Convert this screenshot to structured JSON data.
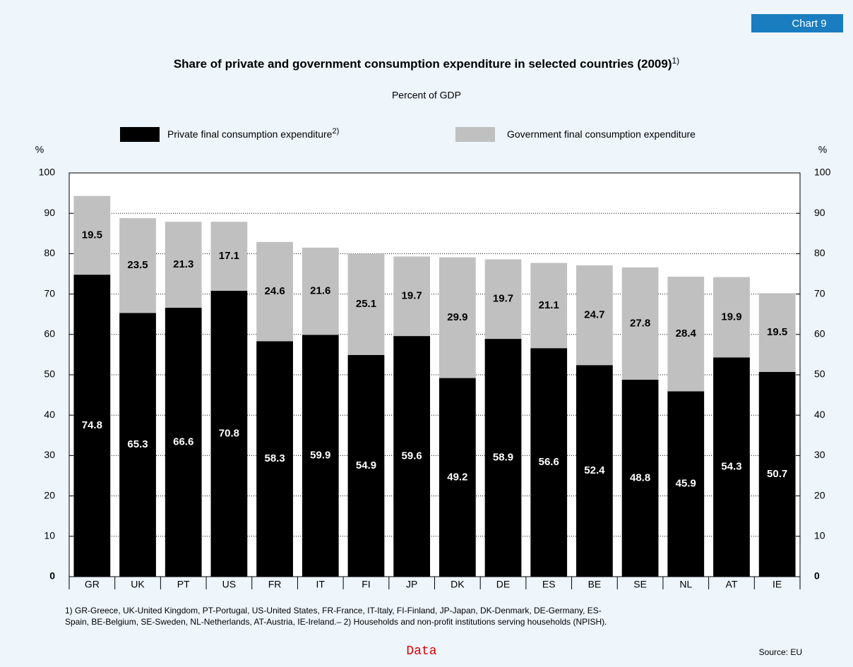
{
  "chart_data": {
    "type": "stacked_bar",
    "badge": "Chart 9",
    "title": "Share of private and government consumption expenditure in selected countries (2009)",
    "title_note": "1)",
    "subtitle": "Percent of GDP",
    "y_axis_label": "%",
    "categories": [
      "GR",
      "UK",
      "PT",
      "US",
      "FR",
      "IT",
      "FI",
      "JP",
      "DK",
      "DE",
      "ES",
      "BE",
      "SE",
      "NL",
      "AT",
      "IE"
    ],
    "series": [
      {
        "name": "Private final consumption expenditure",
        "note": "2)",
        "color": "#000000",
        "label_color": "#ffffff",
        "values": [
          74.8,
          65.3,
          66.6,
          70.8,
          58.3,
          59.9,
          54.9,
          59.6,
          49.2,
          58.9,
          56.6,
          52.4,
          48.8,
          45.9,
          54.3,
          50.7
        ]
      },
      {
        "name": "Government final consumption expenditure",
        "color": "#c0c0c0",
        "label_color": "#000000",
        "values": [
          19.5,
          23.5,
          21.3,
          17.1,
          24.6,
          21.6,
          25.1,
          19.7,
          29.9,
          19.7,
          21.1,
          24.7,
          27.8,
          28.4,
          19.9,
          19.5
        ]
      }
    ],
    "ylim": [
      0,
      100
    ],
    "yticks": [
      0,
      10,
      20,
      30,
      40,
      50,
      60,
      70,
      80,
      90,
      100
    ],
    "grid": true,
    "footnote": [
      "1) GR-Greece, UK-United Kingdom, PT-Portugal, US-United States, FR-France, IT-Italy, FI-Finland, JP-Japan, DK-Denmark, DE-Germany, ES-",
      "Spain, BE-Belgium, SE-Sweden, NL-Netherlands, AT-Austria, IE-Ireland.– 2) Households and non-profit institutions serving households (NPISH)."
    ],
    "link": "Data",
    "source": "Source: EU"
  }
}
